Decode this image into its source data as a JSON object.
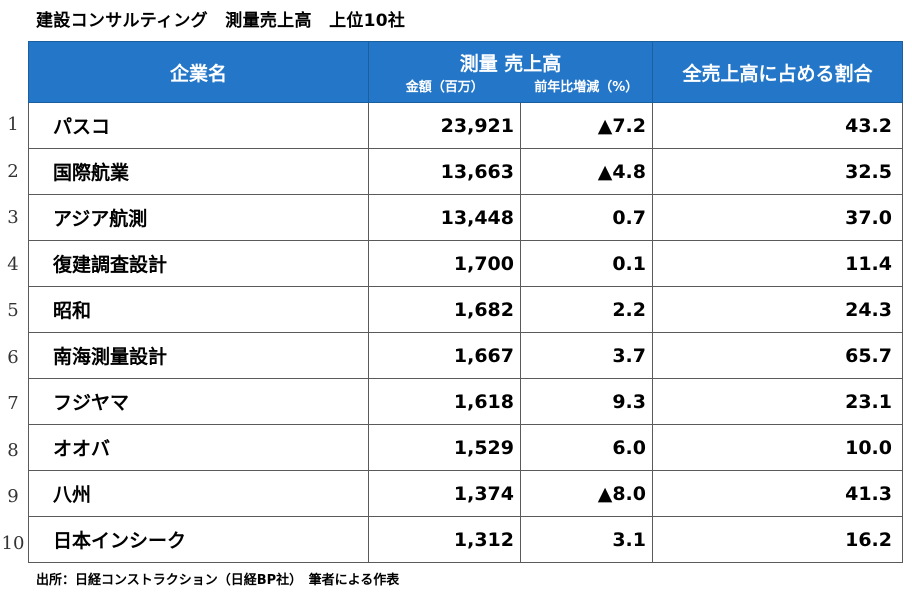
{
  "title": "建設コンサルティング　測量売上高　上位10社",
  "table": {
    "headers": {
      "company": "企業名",
      "sales_group": "測量 売上高",
      "amount": "金額（百万）",
      "change": "前年比増減（%）",
      "share": "全売上高に占める割合"
    },
    "rows": [
      {
        "rank": "1",
        "company": "パスコ",
        "amount": "23,921",
        "change": "▲7.2",
        "share": "43.2"
      },
      {
        "rank": "2",
        "company": "国際航業",
        "amount": "13,663",
        "change": "▲4.8",
        "share": "32.5"
      },
      {
        "rank": "3",
        "company": "アジア航測",
        "amount": "13,448",
        "change": "0.7",
        "share": "37.0"
      },
      {
        "rank": "4",
        "company": "復建調査設計",
        "amount": "1,700",
        "change": "0.1",
        "share": "11.4"
      },
      {
        "rank": "5",
        "company": "昭和",
        "amount": "1,682",
        "change": "2.2",
        "share": "24.3"
      },
      {
        "rank": "6",
        "company": "南海測量設計",
        "amount": "1,667",
        "change": "3.7",
        "share": "65.7"
      },
      {
        "rank": "7",
        "company": "フジヤマ",
        "amount": "1,618",
        "change": "9.3",
        "share": "23.1"
      },
      {
        "rank": "8",
        "company": "オオバ",
        "amount": "1,529",
        "change": "6.0",
        "share": "10.0"
      },
      {
        "rank": "9",
        "company": "八州",
        "amount": "1,374",
        "change": "▲8.0",
        "share": "41.3"
      },
      {
        "rank": "10",
        "company": "日本インシーク",
        "amount": "1,312",
        "change": "3.1",
        "share": "16.2"
      }
    ]
  },
  "source": "出所：日経コンストラクション（日経BP社）　筆者による作表",
  "colors": {
    "header_bg": "#2477c8",
    "header_text": "#ffffff"
  }
}
